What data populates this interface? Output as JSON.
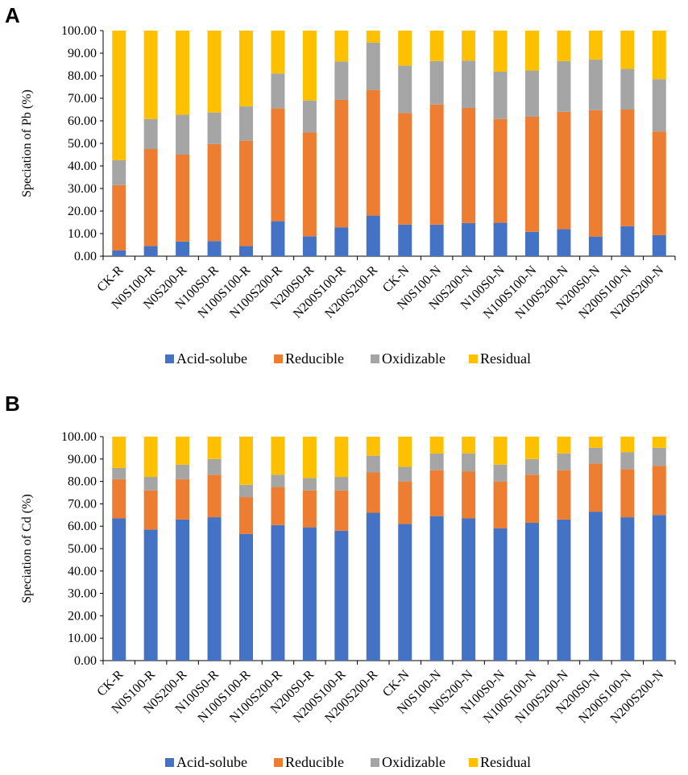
{
  "panels": {
    "a": {
      "label": "A"
    },
    "b": {
      "label": "B"
    }
  },
  "colors": {
    "Acid-solube": "#4472C4",
    "Reducible": "#ED7D31",
    "Oxidizable": "#A5A5A5",
    "Residual": "#FFC000"
  },
  "chart_data": [
    {
      "type": "bar",
      "stacked": true,
      "panel": "A",
      "title": "",
      "xlabel": "",
      "ylabel": "Speciation of Pb (%)",
      "ylim": [
        0,
        100
      ],
      "yticks": [
        "0.00",
        "10.00",
        "20.00",
        "30.00",
        "40.00",
        "50.00",
        "60.00",
        "70.00",
        "80.00",
        "90.00",
        "100.00"
      ],
      "legend_position": "bottom",
      "categories": [
        "CK-R",
        "N0S100-R",
        "N0S200-R",
        "N100S0-R",
        "N100S100-R",
        "N100S200-R",
        "N200S0-R",
        "N200S100-R",
        "N200S200-R",
        "CK-N",
        "N0S100-N",
        "N0S200-N",
        "N100S0-N",
        "N100S100-N",
        "N100S200-N",
        "N200S0-N",
        "N200S100-N",
        "N200S200-N"
      ],
      "series": [
        {
          "name": "Acid-solube",
          "values": [
            2.5,
            4.5,
            6.5,
            6.7,
            4.5,
            15.5,
            8.8,
            12.8,
            18.0,
            14.0,
            14.0,
            14.7,
            14.8,
            10.8,
            12.0,
            8.7,
            13.3,
            9.3
          ]
        },
        {
          "name": "Reducible",
          "values": [
            29.0,
            43.0,
            38.5,
            43.0,
            46.7,
            50.0,
            46.0,
            56.5,
            55.7,
            49.5,
            53.2,
            51.0,
            46.0,
            51.0,
            52.0,
            56.0,
            51.7,
            46.0
          ]
        },
        {
          "name": "Oxidizable",
          "values": [
            11.0,
            13.3,
            17.7,
            14.0,
            15.2,
            15.5,
            14.2,
            17.0,
            21.0,
            21.0,
            19.3,
            21.0,
            21.0,
            20.5,
            22.5,
            22.5,
            18.0,
            23.2
          ]
        },
        {
          "name": "Residual",
          "values": [
            57.5,
            39.2,
            37.3,
            36.3,
            33.6,
            19.0,
            31.0,
            13.7,
            5.3,
            15.5,
            13.5,
            13.3,
            18.2,
            17.7,
            13.5,
            12.8,
            17.0,
            21.5
          ]
        }
      ]
    },
    {
      "type": "bar",
      "stacked": true,
      "panel": "B",
      "title": "",
      "xlabel": "",
      "ylabel": "Speciation of Cd (%)",
      "ylim": [
        0,
        100
      ],
      "yticks": [
        "0.00",
        "10.00",
        "20.00",
        "30.00",
        "40.00",
        "50.00",
        "60.00",
        "70.00",
        "80.00",
        "90.00",
        "100.00"
      ],
      "legend_position": "bottom",
      "categories": [
        "CK-R",
        "N0S100-R",
        "N0S200-R",
        "N100S0-R",
        "N100S100-R",
        "N100S200-R",
        "N200S0-R",
        "N200S100-R",
        "N200S200-R",
        "CK-N",
        "N0S100-N",
        "N0S200-N",
        "N100S0-N",
        "N100S100-N",
        "N100S200-N",
        "N200S0-N",
        "N200S100-N",
        "N200S200-N"
      ],
      "series": [
        {
          "name": "Acid-solube",
          "values": [
            63.5,
            58.5,
            63.0,
            64.0,
            56.5,
            60.5,
            59.5,
            58.0,
            66.0,
            61.0,
            64.5,
            63.5,
            59.0,
            61.5,
            63.0,
            66.5,
            64.0,
            65.0
          ]
        },
        {
          "name": "Reducible",
          "values": [
            17.5,
            17.5,
            18.0,
            19.0,
            16.5,
            17.0,
            16.5,
            18.0,
            18.0,
            19.0,
            20.5,
            21.0,
            21.0,
            21.5,
            22.0,
            21.5,
            21.5,
            22.0
          ]
        },
        {
          "name": "Oxidizable",
          "values": [
            5.0,
            6.0,
            6.5,
            7.0,
            5.5,
            5.5,
            5.5,
            6.0,
            7.5,
            6.5,
            7.5,
            8.0,
            7.5,
            7.0,
            7.5,
            7.0,
            7.5,
            8.0
          ]
        },
        {
          "name": "Residual",
          "values": [
            14.0,
            18.0,
            12.5,
            10.0,
            21.5,
            17.0,
            18.5,
            18.0,
            8.5,
            13.5,
            7.5,
            7.5,
            12.5,
            10.0,
            7.5,
            5.0,
            7.0,
            5.0
          ]
        }
      ]
    }
  ]
}
